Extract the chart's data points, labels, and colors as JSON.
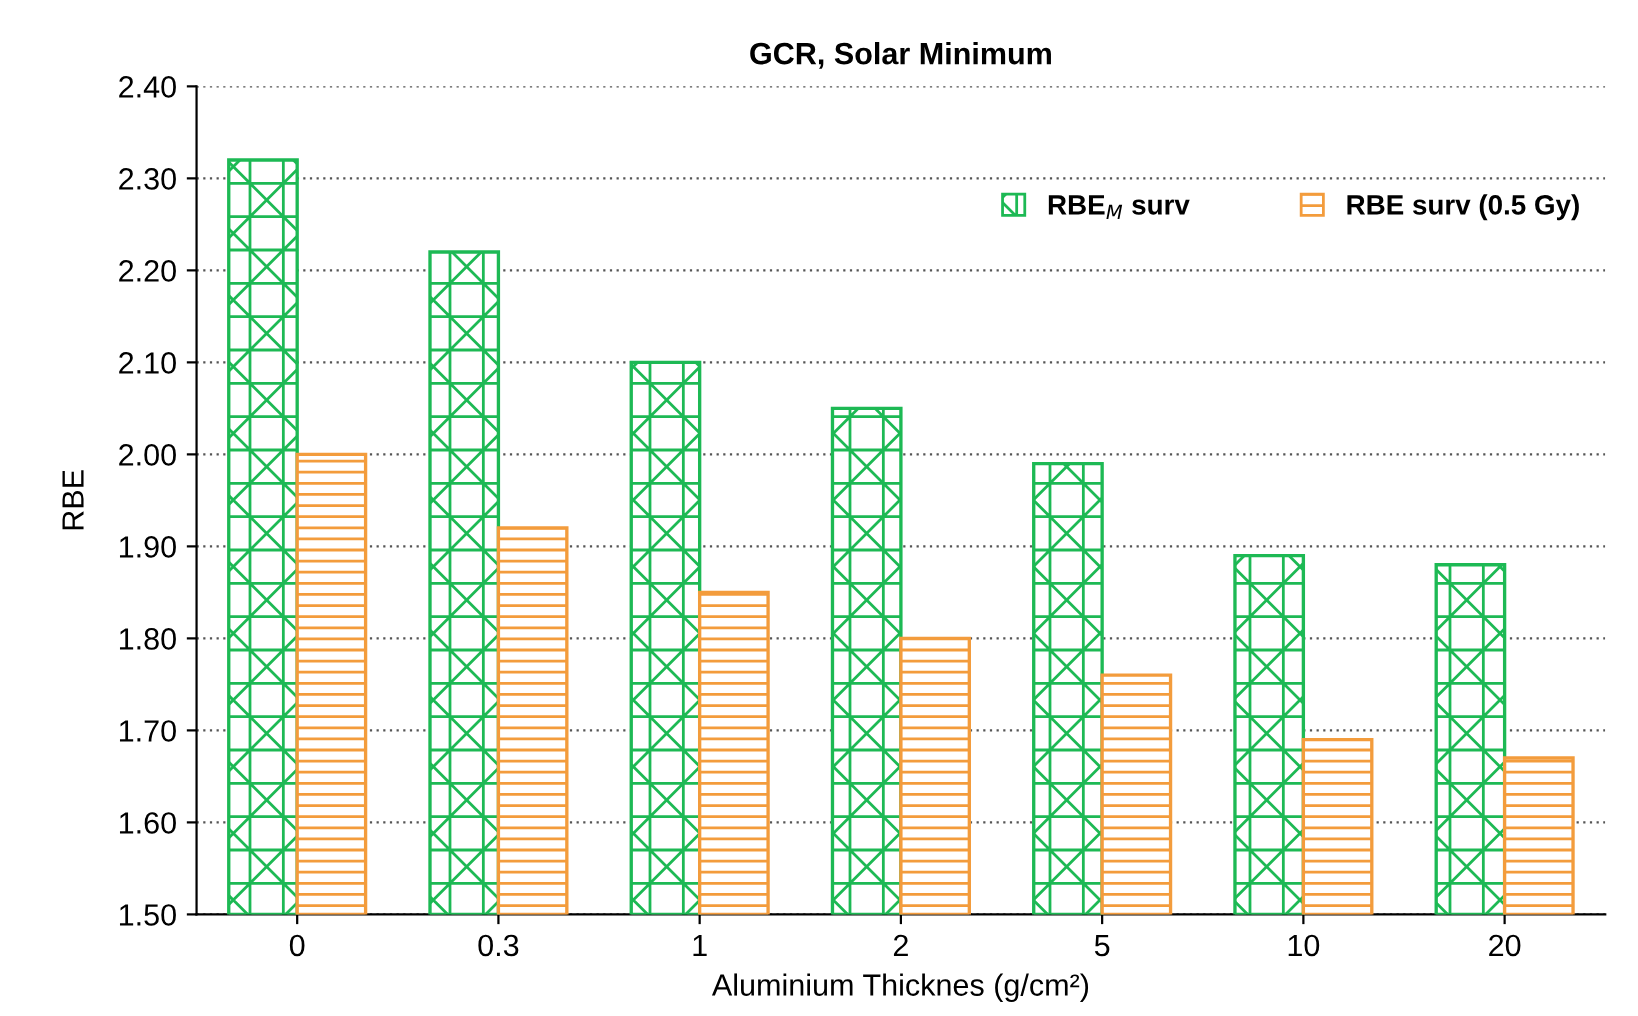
{
  "chart_data": {
    "type": "bar",
    "title": "GCR, Solar Minimum",
    "xlabel": "Aluminium Thicknes (g/cm²)",
    "ylabel": "RBE",
    "categories": [
      "0",
      "0.3",
      "1",
      "2",
      "5",
      "10",
      "20"
    ],
    "series": [
      {
        "name": "RBE$_{M}$ surv",
        "color": "#1db954",
        "values": [
          2.32,
          2.22,
          2.1,
          2.05,
          1.99,
          1.89,
          1.88
        ]
      },
      {
        "name": "RBE surv (0.5 Gy)",
        "color": "#f39c3c",
        "values": [
          2.0,
          1.92,
          1.85,
          1.8,
          1.76,
          1.69,
          1.67
        ]
      }
    ],
    "ylim": [
      1.5,
      2.4
    ],
    "yticks": [
      {
        "value": 1.5,
        "label": "1.50"
      },
      {
        "value": 1.6,
        "label": "1.60"
      },
      {
        "value": 1.7,
        "label": "1.70"
      },
      {
        "value": 1.8,
        "label": "1.80"
      },
      {
        "value": 1.9,
        "label": "1.90"
      },
      {
        "value": 2.0,
        "label": "2.00"
      },
      {
        "value": 2.1,
        "label": "2.10"
      },
      {
        "value": 2.2,
        "label": "2.20"
      },
      {
        "value": 2.3,
        "label": "2.30"
      },
      {
        "value": 2.4,
        "label": "2.40"
      }
    ],
    "grid": "y",
    "legend": "top right"
  }
}
